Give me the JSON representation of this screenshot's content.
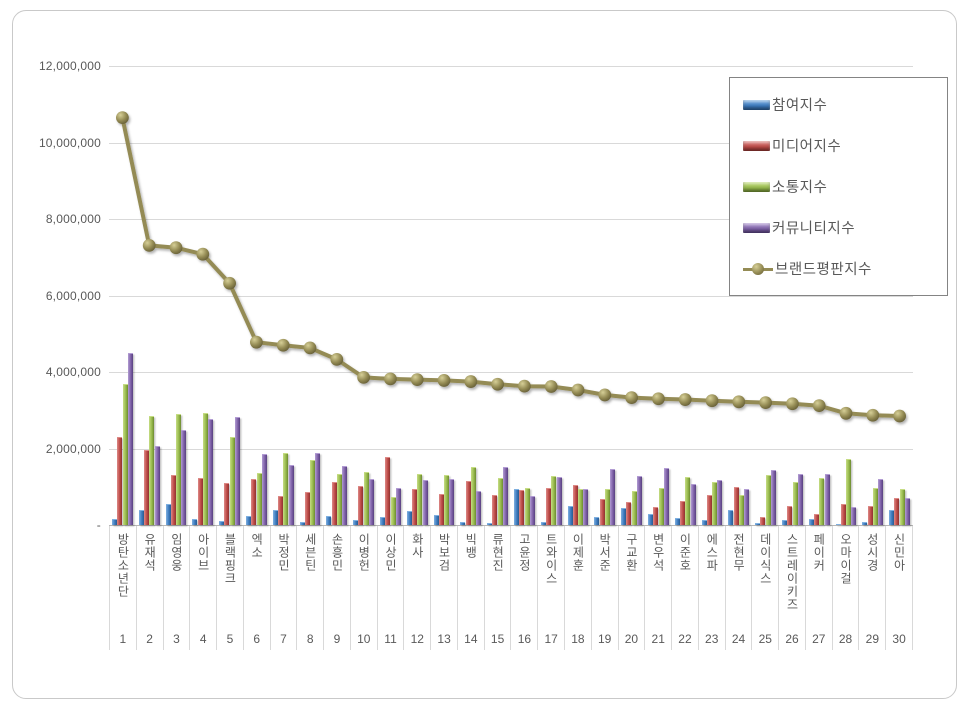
{
  "chart_data": {
    "type": "bar",
    "subtype": "clustered-column-with-line-overlay",
    "title": "",
    "categories": [
      "방탄소년단",
      "유재석",
      "임영웅",
      "아이브",
      "블랙핑크",
      "엑소",
      "박정민",
      "세븐틴",
      "손흥민",
      "이병헌",
      "이상민",
      "화사",
      "박보검",
      "빅뱅",
      "류현진",
      "고윤정",
      "트와이스",
      "이제훈",
      "박서준",
      "구교환",
      "변우석",
      "이준호",
      "에스파",
      "전현무",
      "데이식스",
      "스트레이키즈",
      "페이커",
      "오마이걸",
      "성시경",
      "신민아"
    ],
    "category_ranks": [
      "1",
      "2",
      "3",
      "4",
      "5",
      "6",
      "7",
      "8",
      "9",
      "10",
      "11",
      "12",
      "13",
      "14",
      "15",
      "16",
      "17",
      "18",
      "19",
      "20",
      "21",
      "22",
      "23",
      "24",
      "25",
      "26",
      "27",
      "28",
      "29",
      "30"
    ],
    "y_axis": {
      "min": 0,
      "max": 12000000,
      "tick_interval": 2000000,
      "tick_labels": [
        {
          "value": 12000000,
          "label": "12,000,000"
        },
        {
          "value": 10000000,
          "label": "10,000,000"
        },
        {
          "value": 8000000,
          "label": "8,000,000"
        },
        {
          "value": 6000000,
          "label": "6,000,000"
        },
        {
          "value": 4000000,
          "label": "4,000,000"
        },
        {
          "value": 2000000,
          "label": "2,000,000"
        },
        {
          "value": 0,
          "label": "-"
        }
      ]
    },
    "grid": true,
    "legend_position": "top-right",
    "series": [
      {
        "name": "참여지수",
        "render": "column",
        "color": "#3d7bbf",
        "color_light": "#7fb0e0",
        "color_dark": "#2a5a8e",
        "values": [
          170000,
          380000,
          560000,
          170000,
          100000,
          240000,
          400000,
          90000,
          240000,
          120000,
          220000,
          360000,
          250000,
          80000,
          50000,
          950000,
          90000,
          510000,
          200000,
          440000,
          280000,
          180000,
          140000,
          380000,
          50000,
          140000,
          150000,
          30000,
          80000,
          400000
        ]
      },
      {
        "name": "미디어지수",
        "render": "column",
        "color": "#be4b48",
        "color_light": "#dd8a87",
        "color_dark": "#8e3330",
        "values": [
          2300000,
          1970000,
          1300000,
          1220000,
          1100000,
          1190000,
          760000,
          860000,
          1120000,
          1010000,
          1780000,
          950000,
          820000,
          1160000,
          790000,
          910000,
          980000,
          1050000,
          680000,
          600000,
          480000,
          640000,
          780000,
          990000,
          220000,
          500000,
          280000,
          560000,
          500000,
          700000
        ]
      },
      {
        "name": "소통지수",
        "render": "column",
        "color": "#98bb4d",
        "color_light": "#c6dd85",
        "color_dark": "#6d8a31",
        "values": [
          3680000,
          2850000,
          2900000,
          2920000,
          2290000,
          1350000,
          1880000,
          1700000,
          1340000,
          1390000,
          740000,
          1340000,
          1320000,
          1510000,
          1230000,
          970000,
          1280000,
          950000,
          950000,
          880000,
          970000,
          1250000,
          1130000,
          790000,
          1320000,
          1120000,
          1230000,
          1720000,
          970000,
          940000
        ]
      },
      {
        "name": "커뮤니티지수",
        "render": "column",
        "color": "#7f62a8",
        "color_light": "#b29cd3",
        "color_dark": "#584180",
        "values": [
          4500000,
          2070000,
          2490000,
          2770000,
          2830000,
          1850000,
          1560000,
          1890000,
          1540000,
          1210000,
          970000,
          1180000,
          1210000,
          900000,
          1510000,
          760000,
          1260000,
          950000,
          1470000,
          1270000,
          1480000,
          1070000,
          1170000,
          930000,
          1430000,
          1340000,
          1340000,
          470000,
          1200000,
          700000
        ]
      },
      {
        "name": "브랜드평판지수",
        "render": "line",
        "color": "#948b54",
        "color_light": "#d6cf97",
        "color_dark": "#5f5833",
        "values": [
          10650000,
          7310000,
          7250000,
          7080000,
          6320000,
          4780000,
          4700000,
          4630000,
          4330000,
          3860000,
          3820000,
          3800000,
          3780000,
          3750000,
          3680000,
          3630000,
          3620000,
          3530000,
          3400000,
          3330000,
          3300000,
          3280000,
          3250000,
          3220000,
          3200000,
          3170000,
          3120000,
          2920000,
          2870000,
          2850000
        ]
      }
    ]
  }
}
